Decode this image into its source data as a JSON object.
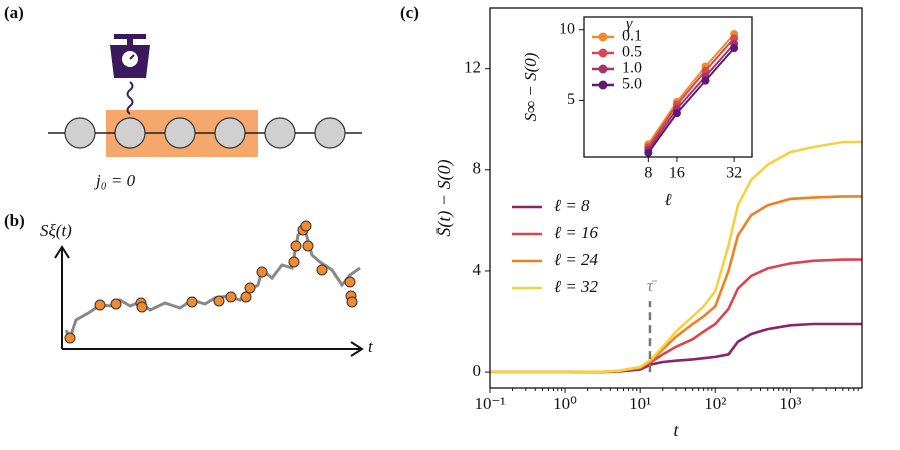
{
  "panel_a": {
    "label": "(a)",
    "site_label": "j₀ = 0"
  },
  "panel_b": {
    "label": "(b)",
    "y_label": "Sξ(t)",
    "x_label": "t"
  },
  "chart_data": [
    {
      "type": "line",
      "panel_label": "(c)",
      "x_label": "t",
      "y_label": "S̄(t) − S(0)",
      "xscale": "log",
      "xlim": [
        0.1,
        9000
      ],
      "ylim": [
        -0.63,
        14.4
      ],
      "xticks": [
        {
          "value": 0.1,
          "label": "10⁻¹"
        },
        {
          "value": 1,
          "label": "10⁰"
        },
        {
          "value": 10,
          "label": "10¹"
        },
        {
          "value": 100,
          "label": "10²"
        },
        {
          "value": 1000,
          "label": "10³"
        }
      ],
      "yticks": [
        0,
        4,
        8,
        12
      ],
      "legend_loc": "center left",
      "x": [
        0.1,
        1,
        3,
        5,
        10,
        14,
        20,
        30,
        50,
        70,
        100,
        150,
        200,
        300,
        500,
        1000,
        2000,
        5000,
        9000
      ],
      "series": [
        {
          "name": "ℓ = 8",
          "color": "#8c2369",
          "values": [
            0,
            0,
            0,
            0.02,
            0.1,
            0.3,
            0.4,
            0.45,
            0.5,
            0.55,
            0.6,
            0.7,
            1.2,
            1.5,
            1.7,
            1.85,
            1.9,
            1.9,
            1.9
          ]
        },
        {
          "name": "ℓ = 16",
          "color": "#d9464b",
          "values": [
            0,
            0,
            0.01,
            0.03,
            0.15,
            0.4,
            0.7,
            1.0,
            1.3,
            1.6,
            1.9,
            2.5,
            3.3,
            3.8,
            4.1,
            4.3,
            4.4,
            4.45,
            4.45
          ]
        },
        {
          "name": "ℓ = 24",
          "color": "#f07f22",
          "values": [
            0,
            0,
            0.01,
            0.04,
            0.18,
            0.45,
            0.9,
            1.4,
            1.9,
            2.2,
            2.6,
            4.0,
            5.4,
            6.2,
            6.6,
            6.85,
            6.9,
            6.95,
            6.95
          ]
        },
        {
          "name": "ℓ = 32",
          "color": "#f7d13d",
          "values": [
            0,
            0,
            0.01,
            0.05,
            0.2,
            0.5,
            1.0,
            1.6,
            2.2,
            2.6,
            3.2,
            5.0,
            6.6,
            7.6,
            8.2,
            8.7,
            8.9,
            9.1,
            9.1
          ]
        }
      ],
      "annotation": {
        "text": "τ̄",
        "x": 13.5,
        "y": 3.2
      }
    },
    {
      "type": "line",
      "x_label": "ℓ",
      "y_label": "S∞ − S(0)",
      "xlim": [
        -10,
        37
      ],
      "ylim": [
        1,
        10.9
      ],
      "xticks": [
        8,
        16,
        32
      ],
      "yticks": [
        5,
        10
      ],
      "markers": true,
      "legend_loc": "upper left",
      "legend_title": "γ",
      "x": [
        8,
        16,
        24,
        32
      ],
      "series": [
        {
          "name": "0.1",
          "color": "#f08a2b",
          "values": [
            1.9,
            4.9,
            7.4,
            9.7
          ]
        },
        {
          "name": "0.5",
          "color": "#d8474e",
          "values": [
            1.7,
            4.7,
            7.1,
            9.4
          ]
        },
        {
          "name": "1.0",
          "color": "#a8326a",
          "values": [
            1.5,
            4.4,
            6.7,
            9.0
          ]
        },
        {
          "name": "5.0",
          "color": "#5d1a73",
          "values": [
            1.3,
            4.1,
            6.4,
            8.7
          ]
        }
      ]
    }
  ]
}
